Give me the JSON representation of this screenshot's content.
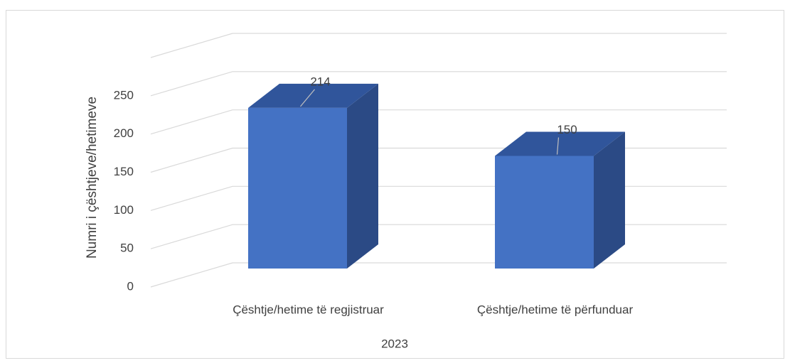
{
  "chart_data": {
    "type": "bar3d",
    "categories": [
      "Çështje/hetime të regjistruar",
      "Çështje/hetime të përfunduar"
    ],
    "values": [
      214,
      150
    ],
    "color": "#4472c4",
    "x_label": "2023",
    "y_label": "Numri i çështjeve/hetimeve",
    "ylim": [
      0,
      300
    ],
    "yticks": [
      0,
      50,
      100,
      150,
      200,
      250
    ],
    "grid": true
  }
}
